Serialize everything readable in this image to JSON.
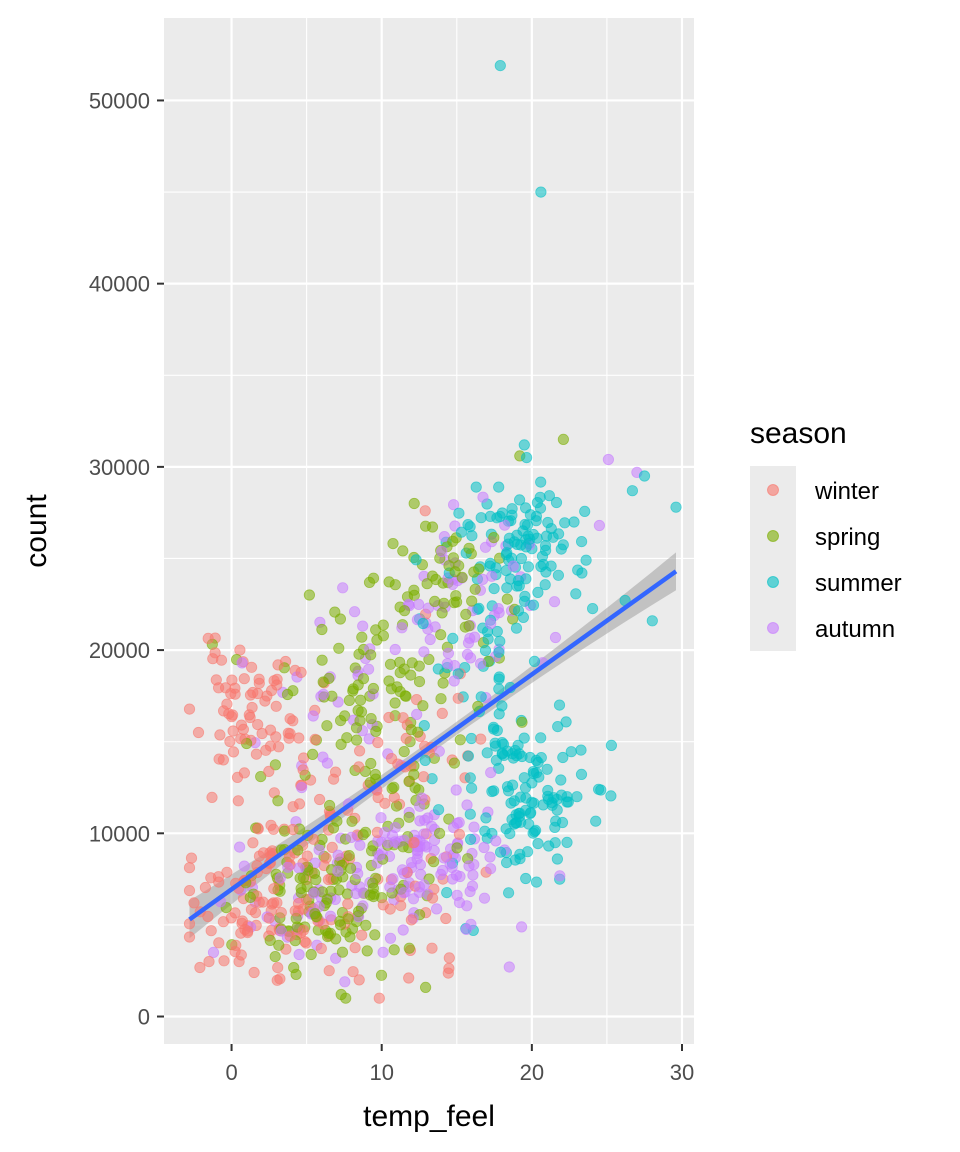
{
  "chart_data": {
    "type": "scatter",
    "title": "",
    "xlabel": "temp_feel",
    "ylabel": "count",
    "xlim": [
      -4.5,
      30.8
    ],
    "ylim": [
      -1500,
      54500
    ],
    "x_ticks": [
      0,
      10,
      20,
      30
    ],
    "y_ticks": [
      0,
      10000,
      20000,
      30000,
      40000,
      50000
    ],
    "x_tick_labels": [
      "0",
      "10",
      "20",
      "30"
    ],
    "y_tick_labels": [
      "0",
      "10000",
      "20000",
      "30000",
      "40000",
      "50000"
    ],
    "grid": true,
    "legend": {
      "title": "season",
      "position": "right"
    },
    "colors": {
      "winter": "#F8766D",
      "spring": "#7CAE00",
      "summer": "#00BFC4",
      "autumn": "#C77CFF",
      "fit_line": "#3366FF",
      "fit_band": "#999999",
      "panel": "#EBEBEB",
      "grid": "#FFFFFF"
    },
    "trend": {
      "method": "lm",
      "x": [
        -2.8,
        29.6
      ],
      "y": [
        5300,
        24300
      ],
      "se": true
    },
    "series": [
      {
        "name": "winter",
        "color": "#F8766D",
        "cluster_gen": [
          {
            "n": 70,
            "cx": 1.5,
            "cy": 16800,
            "sx": 2.0,
            "sy": 1700,
            "seed": 11
          },
          {
            "n": 95,
            "cx": 2.0,
            "cy": 6200,
            "sx": 2.4,
            "sy": 1700,
            "seed": 12
          },
          {
            "n": 40,
            "cx": 4.5,
            "cy": 10800,
            "sx": 2.8,
            "sy": 2200,
            "seed": 13
          },
          {
            "n": 35,
            "cx": 11.5,
            "cy": 6200,
            "sx": 2.5,
            "sy": 2500,
            "seed": 14
          },
          {
            "n": 30,
            "cx": 12.5,
            "cy": 14500,
            "sx": 2.0,
            "sy": 3500,
            "seed": 15
          }
        ],
        "points": [
          {
            "x": -2.5,
            "y": 6200
          },
          {
            "x": -2.2,
            "y": 15500
          },
          {
            "x": -1.5,
            "y": 3000
          },
          {
            "x": 6.5,
            "y": 2500
          },
          {
            "x": 8.5,
            "y": 2000
          },
          {
            "x": 11.8,
            "y": 2100
          },
          {
            "x": 14.5,
            "y": 3200
          },
          {
            "x": 12.9,
            "y": 27600
          },
          {
            "x": 0.5,
            "y": 3000
          },
          {
            "x": 1.5,
            "y": 2400
          }
        ]
      },
      {
        "name": "spring",
        "color": "#7CAE00",
        "cluster_gen": [
          {
            "n": 110,
            "cx": 6.0,
            "cy": 6500,
            "sx": 2.8,
            "sy": 2000,
            "seed": 21
          },
          {
            "n": 90,
            "cx": 9.0,
            "cy": 18500,
            "sx": 3.3,
            "sy": 2600,
            "seed": 22
          },
          {
            "n": 50,
            "cx": 14.0,
            "cy": 23500,
            "sx": 2.2,
            "sy": 2200,
            "seed": 23
          },
          {
            "n": 40,
            "cx": 10.5,
            "cy": 10500,
            "sx": 3.0,
            "sy": 2500,
            "seed": 24
          }
        ],
        "points": [
          {
            "x": 22.1,
            "y": 31500
          },
          {
            "x": 19.2,
            "y": 30600
          },
          {
            "x": 7.3,
            "y": 1200
          },
          {
            "x": 7.6,
            "y": 1000
          },
          {
            "x": 4.3,
            "y": 2300
          },
          {
            "x": 1.0,
            "y": 14900
          }
        ]
      },
      {
        "name": "summer",
        "color": "#00BFC4",
        "cluster_gen": [
          {
            "n": 120,
            "cx": 19.5,
            "cy": 12200,
            "sx": 2.0,
            "sy": 2300,
            "seed": 31
          },
          {
            "n": 100,
            "cx": 19.5,
            "cy": 26000,
            "sx": 2.3,
            "sy": 1900,
            "seed": 32
          },
          {
            "n": 40,
            "cx": 16.5,
            "cy": 19500,
            "sx": 1.8,
            "sy": 2800,
            "seed": 33
          }
        ],
        "points": [
          {
            "x": 17.9,
            "y": 51900
          },
          {
            "x": 20.6,
            "y": 45000
          },
          {
            "x": 29.6,
            "y": 27800
          },
          {
            "x": 27.5,
            "y": 29500
          },
          {
            "x": 26.7,
            "y": 28700
          },
          {
            "x": 25.3,
            "y": 14800
          },
          {
            "x": 21.7,
            "y": 8600
          },
          {
            "x": 15.6,
            "y": 4800
          },
          {
            "x": 16.1,
            "y": 4700
          },
          {
            "x": 19.5,
            "y": 31200
          },
          {
            "x": 23.0,
            "y": 12000
          }
        ]
      },
      {
        "name": "autumn",
        "color": "#C77CFF",
        "cluster_gen": [
          {
            "n": 120,
            "cx": 13.0,
            "cy": 8600,
            "sx": 2.7,
            "sy": 2000,
            "seed": 41
          },
          {
            "n": 60,
            "cx": 15.5,
            "cy": 23000,
            "sx": 2.5,
            "sy": 2600,
            "seed": 42
          },
          {
            "n": 40,
            "cx": 4.5,
            "cy": 6000,
            "sx": 2.5,
            "sy": 2000,
            "seed": 43
          },
          {
            "n": 30,
            "cx": 8.0,
            "cy": 16500,
            "sx": 3.5,
            "sy": 3500,
            "seed": 44
          }
        ],
        "points": [
          {
            "x": 25.1,
            "y": 30400
          },
          {
            "x": 27.0,
            "y": 29700
          },
          {
            "x": 18.5,
            "y": 2700
          },
          {
            "x": 0.7,
            "y": 19300
          },
          {
            "x": 7.4,
            "y": 23400
          },
          {
            "x": -1.2,
            "y": 3500
          },
          {
            "x": 24.5,
            "y": 26800
          }
        ]
      }
    ]
  }
}
